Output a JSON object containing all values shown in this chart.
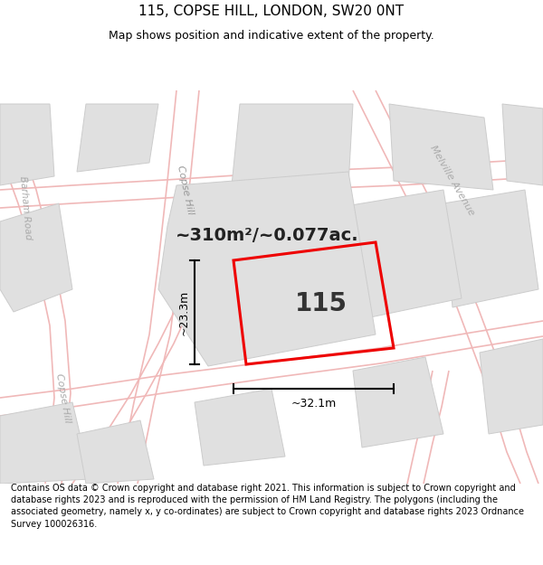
{
  "title": "115, COPSE HILL, LONDON, SW20 0NT",
  "subtitle": "Map shows position and indicative extent of the property.",
  "footer": "Contains OS data © Crown copyright and database right 2021. This information is subject to Crown copyright and database rights 2023 and is reproduced with the permission of HM Land Registry. The polygons (including the associated geometry, namely x, y co-ordinates) are subject to Crown copyright and database rights 2023 Ordnance Survey 100026316.",
  "map_bg": "#f2f2f2",
  "building_fill": "#e0e0e0",
  "building_edge": "#cccccc",
  "road_color": "#f0b8b8",
  "plot_color": "#ee0000",
  "dim_color": "#111111",
  "area_text": "~310m²/~0.077ac.",
  "plot_number": "115",
  "dim_width": "~32.1m",
  "dim_height": "~23.3m",
  "road_label_copse_upper": "Copse Hill",
  "road_label_copse_lower": "Copse Hill",
  "road_label_barham": "Barham Road",
  "road_label_melville": "Melville Avenue",
  "title_fontsize": 11,
  "subtitle_fontsize": 9,
  "footer_fontsize": 7
}
